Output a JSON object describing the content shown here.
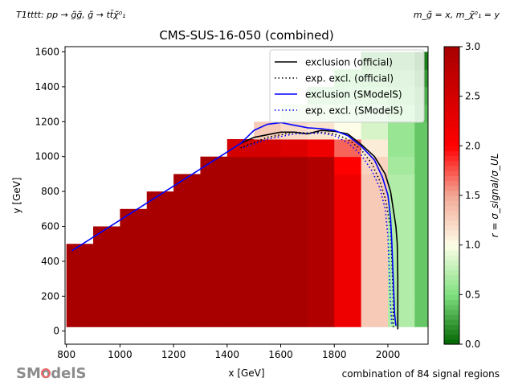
{
  "header": {
    "process": "T1tttt: pp → g̃g̃, g̃ → tt̄χ̃⁰₁",
    "mass_assignment": "m_g̃ = x, m_χ̃⁰₁ = y"
  },
  "footer": {
    "combination_note": "combination of 84 signal regions",
    "logo_text": "SModelS"
  },
  "chart_data": {
    "type": "heatmap",
    "title": "CMS-SUS-16-050 (combined)",
    "xlabel": "x [GeV]",
    "ylabel": "y [GeV]",
    "xlim": [
      795,
      2150
    ],
    "ylim": [
      -75,
      1630
    ],
    "xticks": [
      800,
      1000,
      1200,
      1400,
      1600,
      1800,
      2000
    ],
    "yticks": [
      0,
      200,
      400,
      600,
      800,
      1000,
      1200,
      1400,
      1600
    ],
    "x": [
      850,
      950,
      1050,
      1150,
      1250,
      1350,
      1450,
      1550,
      1650,
      1750,
      1850,
      1950,
      2050,
      2150
    ],
    "y": [
      50,
      150,
      250,
      350,
      450,
      550,
      650,
      750,
      850,
      950,
      1050,
      1150,
      1250,
      1350,
      1450,
      1550
    ],
    "z": [
      [
        3,
        3,
        3,
        3,
        3,
        3,
        3,
        3,
        3,
        2.9,
        2.2,
        1.3,
        0.7,
        0.4
      ],
      [
        3,
        3,
        3,
        3,
        3,
        3,
        3,
        3,
        3,
        2.9,
        2.2,
        1.3,
        0.7,
        0.4
      ],
      [
        3,
        3,
        3,
        3,
        3,
        3,
        3,
        3,
        3,
        2.9,
        2.2,
        1.3,
        0.7,
        0.4
      ],
      [
        3,
        3,
        3,
        3,
        3,
        3,
        3,
        3,
        3,
        2.9,
        2.2,
        1.3,
        0.7,
        0.4
      ],
      [
        3,
        3,
        3,
        3,
        3,
        3,
        3,
        3,
        3,
        2.9,
        2.2,
        1.3,
        0.7,
        0.4
      ],
      [
        null,
        3,
        3,
        3,
        3,
        3,
        3,
        3,
        3,
        2.9,
        2.2,
        1.3,
        0.7,
        0.4
      ],
      [
        null,
        null,
        3,
        3,
        3,
        3,
        3,
        3,
        3,
        2.9,
        2.2,
        1.3,
        0.7,
        0.4
      ],
      [
        null,
        null,
        null,
        3,
        3,
        3,
        3,
        3,
        3,
        2.9,
        2.2,
        1.3,
        0.7,
        0.4
      ],
      [
        null,
        null,
        null,
        null,
        3,
        3,
        3,
        3,
        3,
        2.9,
        2.2,
        1.3,
        0.7,
        0.4
      ],
      [
        null,
        null,
        null,
        null,
        null,
        3,
        3,
        3,
        3,
        2.9,
        2.0,
        1.25,
        0.65,
        0.4
      ],
      [
        null,
        null,
        null,
        null,
        null,
        null,
        2.5,
        2.5,
        2.4,
        2.2,
        1.7,
        1.1,
        0.6,
        0.4
      ],
      [
        null,
        null,
        null,
        null,
        null,
        null,
        null,
        1.3,
        1.2,
        1.15,
        1.0,
        0.85,
        0.6,
        0.4
      ],
      [
        null,
        null,
        null,
        null,
        null,
        null,
        null,
        null,
        0.85,
        0.8,
        0.75,
        0.7,
        0.55,
        0.35
      ],
      [
        null,
        null,
        null,
        null,
        null,
        null,
        null,
        null,
        null,
        0.6,
        0.6,
        0.55,
        0.45,
        0.3
      ],
      [
        null,
        null,
        null,
        null,
        null,
        null,
        null,
        null,
        null,
        null,
        0.5,
        0.45,
        0.4,
        0.2
      ],
      [
        null,
        null,
        null,
        null,
        null,
        null,
        null,
        null,
        null,
        null,
        null,
        0.35,
        0.3,
        0.1
      ]
    ],
    "colorbar": {
      "label": "r = σ_signal/σ_UL",
      "range": [
        0,
        3
      ],
      "ticks": [
        "0.0",
        "0.5",
        "1.0",
        "1.5",
        "2.0",
        "2.5",
        "3.0"
      ],
      "colors": {
        "0": "#006400",
        "0.5": "#7fe07f",
        "1.0": "#fdfde8",
        "1.5": "#f2a896",
        "2.0": "#ff0000",
        "3.0": "#a80000"
      }
    },
    "legend_position": "top-right",
    "series": [
      {
        "name": "exclusion (official)",
        "color": "#000000",
        "style": "solid",
        "points": [
          [
            1450,
            1075
          ],
          [
            1500,
            1110
          ],
          [
            1600,
            1140
          ],
          [
            1650,
            1140
          ],
          [
            1700,
            1130
          ],
          [
            1750,
            1150
          ],
          [
            1800,
            1145
          ],
          [
            1850,
            1130
          ],
          [
            1900,
            1070
          ],
          [
            1950,
            1000
          ],
          [
            1990,
            900
          ],
          [
            2010,
            800
          ],
          [
            2020,
            700
          ],
          [
            2030,
            600
          ],
          [
            2035,
            500
          ],
          [
            2037,
            300
          ],
          [
            2037,
            10
          ]
        ]
      },
      {
        "name": "exp. excl. (official)",
        "color": "#000000",
        "style": "dotted",
        "points": [
          [
            1450,
            1050
          ],
          [
            1550,
            1110
          ],
          [
            1650,
            1140
          ],
          [
            1700,
            1135
          ],
          [
            1750,
            1140
          ],
          [
            1800,
            1130
          ],
          [
            1850,
            1100
          ],
          [
            1900,
            1040
          ],
          [
            1940,
            960
          ],
          [
            1970,
            860
          ],
          [
            1990,
            760
          ],
          [
            2010,
            600
          ],
          [
            2015,
            400
          ],
          [
            2020,
            200
          ],
          [
            2020,
            10
          ]
        ]
      },
      {
        "name": "exclusion (SModelS)",
        "color": "#0000ff",
        "style": "solid",
        "points": [
          [
            820,
            460
          ],
          [
            1450,
            1075
          ],
          [
            1500,
            1150
          ],
          [
            1550,
            1185
          ],
          [
            1600,
            1195
          ],
          [
            1650,
            1180
          ],
          [
            1700,
            1165
          ],
          [
            1750,
            1160
          ],
          [
            1800,
            1150
          ],
          [
            1850,
            1120
          ],
          [
            1900,
            1060
          ],
          [
            1950,
            980
          ],
          [
            1980,
            880
          ],
          [
            2000,
            780
          ],
          [
            2010,
            650
          ],
          [
            2015,
            500
          ],
          [
            2020,
            300
          ],
          [
            2025,
            100
          ],
          [
            2030,
            30
          ]
        ]
      },
      {
        "name": "exp. excl. (SModelS)",
        "color": "#0000ff",
        "style": "dotted",
        "points": [
          [
            1460,
            1050
          ],
          [
            1550,
            1100
          ],
          [
            1650,
            1130
          ],
          [
            1750,
            1135
          ],
          [
            1800,
            1120
          ],
          [
            1850,
            1080
          ],
          [
            1900,
            1010
          ],
          [
            1940,
            920
          ],
          [
            1970,
            820
          ],
          [
            1990,
            700
          ],
          [
            2000,
            550
          ],
          [
            2005,
            350
          ],
          [
            2010,
            150
          ],
          [
            2015,
            30
          ]
        ]
      }
    ]
  }
}
